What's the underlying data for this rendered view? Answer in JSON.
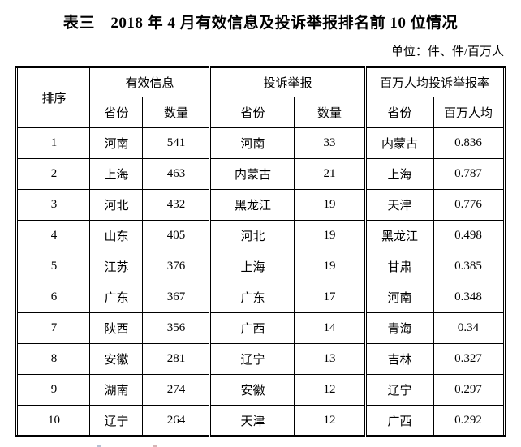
{
  "title": "表三　2018 年 4 月有效信息及投诉举报排名前 10 位情况",
  "unit_label": "单位：件、件/百万人",
  "table": {
    "rank_header": "排序",
    "groups": [
      {
        "label": "有效信息",
        "sub1": "省份",
        "sub2": "数量"
      },
      {
        "label": "投诉举报",
        "sub1": "省份",
        "sub2": "数量"
      },
      {
        "label": "百万人均投诉举报率",
        "sub1": "省份",
        "sub2": "百万人均"
      }
    ],
    "rows": [
      [
        "1",
        "河南",
        "541",
        "河南",
        "33",
        "内蒙古",
        "0.836"
      ],
      [
        "2",
        "上海",
        "463",
        "内蒙古",
        "21",
        "上海",
        "0.787"
      ],
      [
        "3",
        "河北",
        "432",
        "黑龙江",
        "19",
        "天津",
        "0.776"
      ],
      [
        "4",
        "山东",
        "405",
        "河北",
        "19",
        "黑龙江",
        "0.498"
      ],
      [
        "5",
        "江苏",
        "376",
        "上海",
        "19",
        "甘肃",
        "0.385"
      ],
      [
        "6",
        "广东",
        "367",
        "广东",
        "17",
        "河南",
        "0.348"
      ],
      [
        "7",
        "陕西",
        "356",
        "广西",
        "14",
        "青海",
        "0.34"
      ],
      [
        "8",
        "安徽",
        "281",
        "辽宁",
        "13",
        "吉林",
        "0.327"
      ],
      [
        "9",
        "湖南",
        "274",
        "安徽",
        "12",
        "辽宁",
        "0.297"
      ],
      [
        "10",
        "辽宁",
        "264",
        "天津",
        "12",
        "广西",
        "0.292"
      ]
    ]
  }
}
